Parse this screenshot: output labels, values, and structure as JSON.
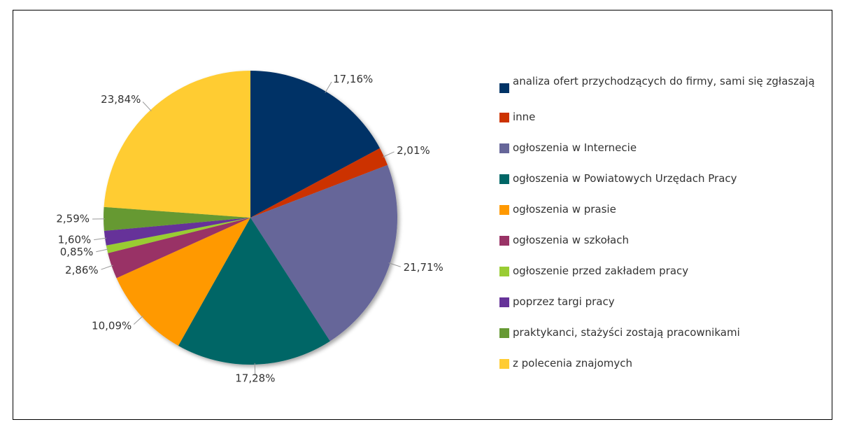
{
  "chart_data": {
    "type": "pie",
    "categories": [
      "analiza ofert przychodzących do firmy, sami się zgłaszają",
      "inne",
      "ogłoszenia w Internecie",
      "ogłoszenia w Powiatowych Urzędach Pracy",
      "ogłoszenia w prasie",
      "ogłoszenia w szkołach",
      "ogłoszenie przed zakładem pracy",
      "poprzez targi pracy",
      "praktykanci, stażyści zostają pracownikami",
      "z polecenia znajomych"
    ],
    "values": [
      17.16,
      2.01,
      21.71,
      17.28,
      10.09,
      2.86,
      0.85,
      1.6,
      2.59,
      23.84
    ],
    "value_labels": [
      "17,16%",
      "2,01%",
      "21,71%",
      "17,28%",
      "10,09%",
      "2,86%",
      "0,85%",
      "1,60%",
      "2,59%",
      "23,84%"
    ],
    "colors": [
      "#003366",
      "#cc3300",
      "#666699",
      "#006666",
      "#ff9900",
      "#993366",
      "#99cc33",
      "#663399",
      "#669933",
      "#ffcc33"
    ],
    "legend": "right"
  }
}
